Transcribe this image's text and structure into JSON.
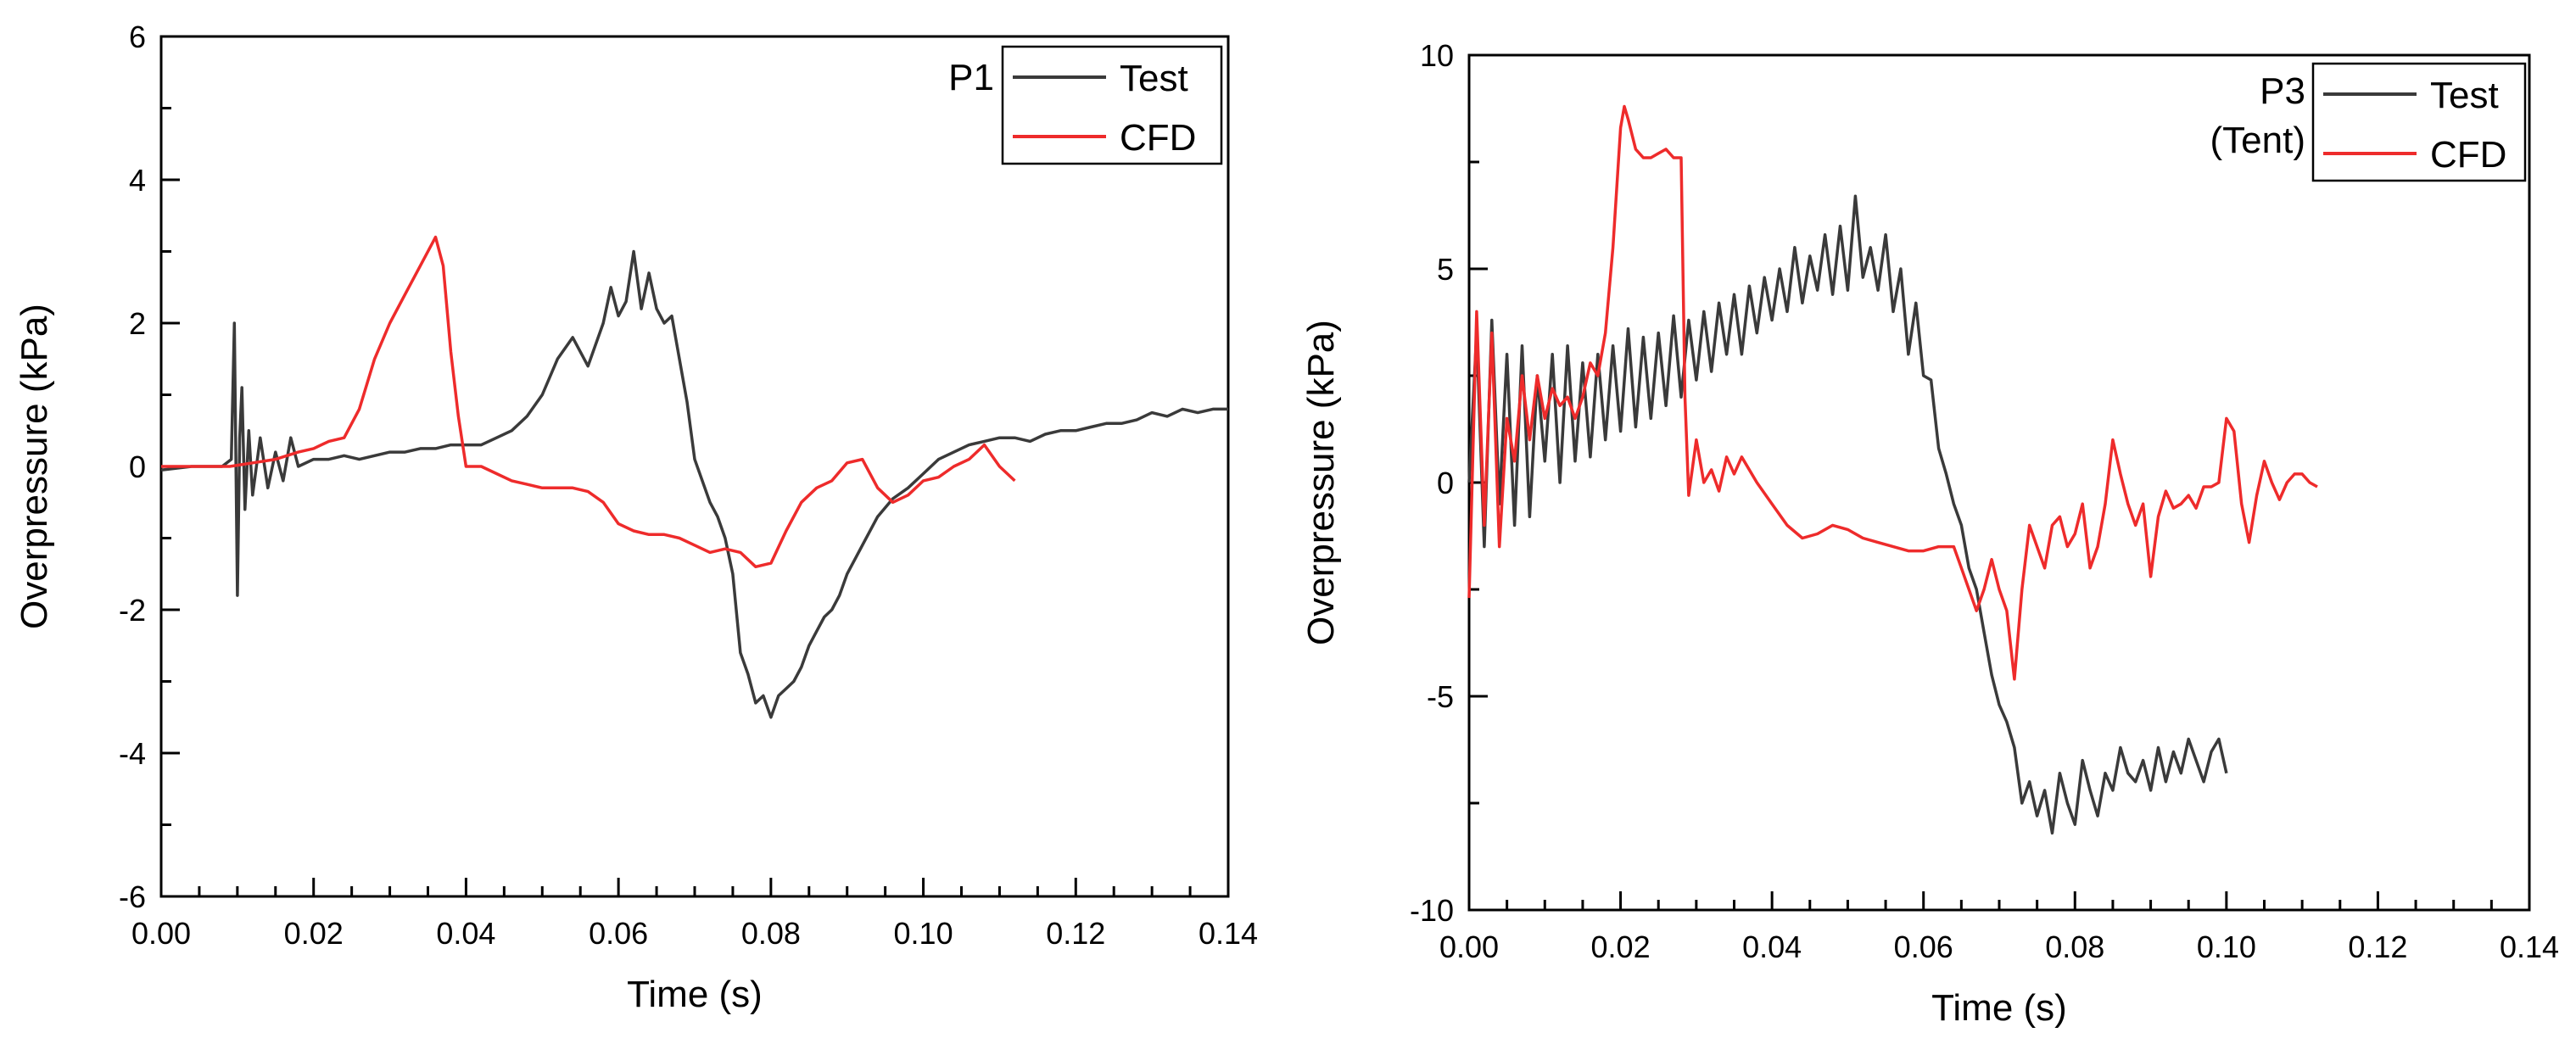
{
  "colors": {
    "test": "#3a3a3a",
    "cfd": "#ee2b2b",
    "axis": "#000000"
  },
  "chart_data": [
    {
      "type": "line",
      "title": "",
      "panel_label": [
        "P1"
      ],
      "xlabel": "Time (s)",
      "ylabel": "Overpressure (kPa)",
      "xlim": [
        0,
        0.14
      ],
      "ylim": [
        -6,
        6
      ],
      "xticks": [
        0,
        0.02,
        0.04,
        0.06,
        0.08,
        0.1,
        0.12,
        0.14
      ],
      "xtick_labels": [
        "0.00",
        "0.02",
        "0.04",
        "0.06",
        "0.08",
        "0.10",
        "0.12",
        "0.14"
      ],
      "yticks": [
        -6,
        -4,
        -2,
        0,
        2,
        4,
        6
      ],
      "ytick_labels": [
        "-6",
        "-4",
        "-2",
        "0",
        "2",
        "4",
        "6"
      ],
      "legend": [
        "Test",
        "CFD"
      ],
      "legend_position": "top-right",
      "series": [
        {
          "name": "Test",
          "color_key": "test",
          "x": [
            0,
            0.004,
            0.008,
            0.0092,
            0.0096,
            0.01,
            0.0103,
            0.0106,
            0.011,
            0.0115,
            0.012,
            0.013,
            0.014,
            0.015,
            0.016,
            0.017,
            0.018,
            0.02,
            0.022,
            0.024,
            0.026,
            0.028,
            0.03,
            0.032,
            0.034,
            0.036,
            0.038,
            0.04,
            0.042,
            0.044,
            0.046,
            0.048,
            0.05,
            0.052,
            0.054,
            0.056,
            0.058,
            0.059,
            0.06,
            0.061,
            0.062,
            0.063,
            0.064,
            0.065,
            0.066,
            0.067,
            0.068,
            0.069,
            0.07,
            0.071,
            0.072,
            0.073,
            0.074,
            0.075,
            0.076,
            0.077,
            0.078,
            0.079,
            0.08,
            0.081,
            0.082,
            0.083,
            0.084,
            0.085,
            0.086,
            0.087,
            0.088,
            0.089,
            0.09,
            0.092,
            0.094,
            0.096,
            0.098,
            0.1,
            0.102,
            0.104,
            0.106,
            0.108,
            0.11,
            0.112,
            0.114,
            0.116,
            0.118,
            0.12,
            0.122,
            0.124,
            0.126,
            0.128,
            0.13,
            0.132,
            0.134,
            0.136,
            0.138,
            0.14
          ],
          "y": [
            -0.05,
            0.0,
            0.0,
            0.1,
            2.0,
            -1.8,
            0.4,
            1.1,
            -0.6,
            0.5,
            -0.4,
            0.4,
            -0.3,
            0.2,
            -0.2,
            0.4,
            0.0,
            0.1,
            0.1,
            0.15,
            0.1,
            0.15,
            0.2,
            0.2,
            0.25,
            0.25,
            0.3,
            0.3,
            0.3,
            0.4,
            0.5,
            0.7,
            1.0,
            1.5,
            1.8,
            1.4,
            2.0,
            2.5,
            2.1,
            2.3,
            3.0,
            2.2,
            2.7,
            2.2,
            2.0,
            2.1,
            1.5,
            0.9,
            0.1,
            -0.2,
            -0.5,
            -0.7,
            -1.0,
            -1.5,
            -2.6,
            -2.9,
            -3.3,
            -3.2,
            -3.5,
            -3.2,
            -3.1,
            -3.0,
            -2.8,
            -2.5,
            -2.3,
            -2.1,
            -2.0,
            -1.8,
            -1.5,
            -1.1,
            -0.7,
            -0.45,
            -0.3,
            -0.1,
            0.1,
            0.2,
            0.3,
            0.35,
            0.4,
            0.4,
            0.35,
            0.45,
            0.5,
            0.5,
            0.55,
            0.6,
            0.6,
            0.65,
            0.75,
            0.7,
            0.8,
            0.75,
            0.8,
            0.8
          ]
        },
        {
          "name": "CFD",
          "color_key": "cfd",
          "x": [
            0,
            0.005,
            0.009,
            0.012,
            0.015,
            0.018,
            0.02,
            0.022,
            0.024,
            0.026,
            0.028,
            0.03,
            0.032,
            0.034,
            0.036,
            0.037,
            0.038,
            0.039,
            0.04,
            0.042,
            0.044,
            0.046,
            0.048,
            0.05,
            0.052,
            0.054,
            0.056,
            0.058,
            0.06,
            0.062,
            0.064,
            0.066,
            0.068,
            0.07,
            0.072,
            0.074,
            0.076,
            0.078,
            0.08,
            0.082,
            0.084,
            0.086,
            0.088,
            0.09,
            0.092,
            0.094,
            0.096,
            0.098,
            0.1,
            0.102,
            0.104,
            0.106,
            0.108,
            0.11,
            0.112
          ],
          "y": [
            0.0,
            0.0,
            0.0,
            0.05,
            0.1,
            0.2,
            0.25,
            0.35,
            0.4,
            0.8,
            1.5,
            2.0,
            2.4,
            2.8,
            3.2,
            2.8,
            1.6,
            0.7,
            0.0,
            0.0,
            -0.1,
            -0.2,
            -0.25,
            -0.3,
            -0.3,
            -0.3,
            -0.35,
            -0.5,
            -0.8,
            -0.9,
            -0.95,
            -0.95,
            -1.0,
            -1.1,
            -1.2,
            -1.15,
            -1.2,
            -1.4,
            -1.35,
            -0.9,
            -0.5,
            -0.3,
            -0.2,
            0.05,
            0.1,
            -0.3,
            -0.5,
            -0.4,
            -0.2,
            -0.15,
            0.0,
            0.1,
            0.3,
            0.0,
            -0.2
          ]
        }
      ]
    },
    {
      "type": "line",
      "title": "",
      "panel_label": [
        "P3",
        "(Tent)"
      ],
      "xlabel": "Time (s)",
      "ylabel": "Overpressure (kPa)",
      "xlim": [
        0,
        0.14
      ],
      "ylim": [
        -10,
        10
      ],
      "xticks": [
        0,
        0.02,
        0.04,
        0.06,
        0.08,
        0.1,
        0.12,
        0.14
      ],
      "xtick_labels": [
        "0.00",
        "0.02",
        "0.04",
        "0.06",
        "0.08",
        "0.10",
        "0.12",
        "0.14"
      ],
      "yticks": [
        -10,
        -5,
        0,
        5,
        10
      ],
      "ytick_labels": [
        "-10",
        "-5",
        "0",
        "5",
        "10"
      ],
      "legend": [
        "Test",
        "CFD"
      ],
      "legend_position": "top-right",
      "series": [
        {
          "name": "Test",
          "color_key": "test",
          "x": [
            0,
            0.001,
            0.002,
            0.003,
            0.004,
            0.005,
            0.006,
            0.007,
            0.008,
            0.009,
            0.01,
            0.011,
            0.012,
            0.013,
            0.014,
            0.015,
            0.016,
            0.017,
            0.018,
            0.019,
            0.02,
            0.021,
            0.022,
            0.023,
            0.024,
            0.025,
            0.026,
            0.027,
            0.028,
            0.029,
            0.03,
            0.031,
            0.032,
            0.033,
            0.034,
            0.035,
            0.036,
            0.037,
            0.038,
            0.039,
            0.04,
            0.041,
            0.042,
            0.043,
            0.044,
            0.045,
            0.046,
            0.047,
            0.048,
            0.049,
            0.05,
            0.051,
            0.052,
            0.053,
            0.054,
            0.055,
            0.056,
            0.057,
            0.058,
            0.059,
            0.06,
            0.061,
            0.062,
            0.063,
            0.064,
            0.065,
            0.066,
            0.067,
            0.068,
            0.069,
            0.07,
            0.071,
            0.072,
            0.073,
            0.074,
            0.075,
            0.076,
            0.077,
            0.078,
            0.079,
            0.08,
            0.081,
            0.082,
            0.083,
            0.084,
            0.085,
            0.086,
            0.087,
            0.088,
            0.089,
            0.09,
            0.091,
            0.092,
            0.093,
            0.094,
            0.095,
            0.096,
            0.097,
            0.098,
            0.099,
            0.1
          ],
          "y": [
            0,
            3.5,
            -1.5,
            3.8,
            -0.5,
            3.0,
            -1.0,
            3.2,
            -0.8,
            2.5,
            0.5,
            3.0,
            0.0,
            3.2,
            0.5,
            2.8,
            0.6,
            3.0,
            1.0,
            3.2,
            1.2,
            3.6,
            1.3,
            3.4,
            1.5,
            3.5,
            1.8,
            3.9,
            2.0,
            3.8,
            2.4,
            4.0,
            2.6,
            4.2,
            3.0,
            4.4,
            3.0,
            4.6,
            3.5,
            4.8,
            3.8,
            5.0,
            4.0,
            5.5,
            4.2,
            5.3,
            4.5,
            5.8,
            4.4,
            6.0,
            4.5,
            6.7,
            4.8,
            5.5,
            4.5,
            5.8,
            4.0,
            5.0,
            3.0,
            4.2,
            2.5,
            2.4,
            0.8,
            0.2,
            -0.5,
            -1.0,
            -2.0,
            -2.5,
            -3.5,
            -4.5,
            -5.2,
            -5.6,
            -6.2,
            -7.5,
            -7.0,
            -7.8,
            -7.2,
            -8.2,
            -6.8,
            -7.5,
            -8.0,
            -6.5,
            -7.2,
            -7.8,
            -6.8,
            -7.2,
            -6.2,
            -6.8,
            -7.0,
            -6.5,
            -7.2,
            -6.2,
            -7.0,
            -6.3,
            -6.8,
            -6.0,
            -6.5,
            -7.0,
            -6.3,
            -6.0,
            -6.8
          ]
        },
        {
          "name": "CFD",
          "color_key": "cfd",
          "x": [
            0,
            0.001,
            0.002,
            0.003,
            0.004,
            0.005,
            0.006,
            0.007,
            0.008,
            0.009,
            0.01,
            0.011,
            0.012,
            0.013,
            0.014,
            0.015,
            0.016,
            0.017,
            0.018,
            0.019,
            0.02,
            0.0205,
            0.021,
            0.022,
            0.023,
            0.024,
            0.025,
            0.026,
            0.027,
            0.028,
            0.0285,
            0.029,
            0.03,
            0.031,
            0.032,
            0.033,
            0.034,
            0.035,
            0.036,
            0.038,
            0.04,
            0.042,
            0.044,
            0.046,
            0.048,
            0.05,
            0.052,
            0.054,
            0.056,
            0.058,
            0.06,
            0.062,
            0.064,
            0.065,
            0.066,
            0.067,
            0.068,
            0.069,
            0.07,
            0.071,
            0.072,
            0.073,
            0.074,
            0.075,
            0.076,
            0.077,
            0.078,
            0.079,
            0.08,
            0.081,
            0.082,
            0.083,
            0.084,
            0.085,
            0.086,
            0.087,
            0.088,
            0.089,
            0.09,
            0.091,
            0.092,
            0.093,
            0.094,
            0.095,
            0.096,
            0.097,
            0.098,
            0.099,
            0.1,
            0.101,
            0.102,
            0.103,
            0.104,
            0.105,
            0.106,
            0.107,
            0.108,
            0.109,
            0.11,
            0.111,
            0.112
          ],
          "y": [
            -2.7,
            4.0,
            -1.0,
            3.5,
            -1.5,
            1.5,
            0.5,
            2.5,
            1.0,
            2.5,
            1.5,
            2.2,
            1.8,
            2.0,
            1.5,
            2.0,
            2.8,
            2.5,
            3.5,
            5.5,
            8.3,
            8.8,
            8.5,
            7.8,
            7.6,
            7.6,
            7.7,
            7.8,
            7.6,
            7.6,
            2.0,
            -0.3,
            1.0,
            0.0,
            0.3,
            -0.2,
            0.6,
            0.2,
            0.6,
            0.0,
            -0.5,
            -1.0,
            -1.3,
            -1.2,
            -1.0,
            -1.1,
            -1.3,
            -1.4,
            -1.5,
            -1.6,
            -1.6,
            -1.5,
            -1.5,
            -2.0,
            -2.5,
            -3.0,
            -2.5,
            -1.8,
            -2.5,
            -3.0,
            -4.6,
            -2.5,
            -1.0,
            -1.5,
            -2.0,
            -1.0,
            -0.8,
            -1.5,
            -1.2,
            -0.5,
            -2.0,
            -1.5,
            -0.5,
            1.0,
            0.2,
            -0.5,
            -1.0,
            -0.5,
            -2.2,
            -0.8,
            -0.2,
            -0.6,
            -0.5,
            -0.3,
            -0.6,
            -0.1,
            -0.1,
            0.0,
            1.5,
            1.2,
            -0.5,
            -1.4,
            -0.3,
            0.5,
            0.0,
            -0.4,
            0.0,
            0.2,
            0.2,
            0.0,
            -0.1
          ]
        }
      ]
    }
  ]
}
